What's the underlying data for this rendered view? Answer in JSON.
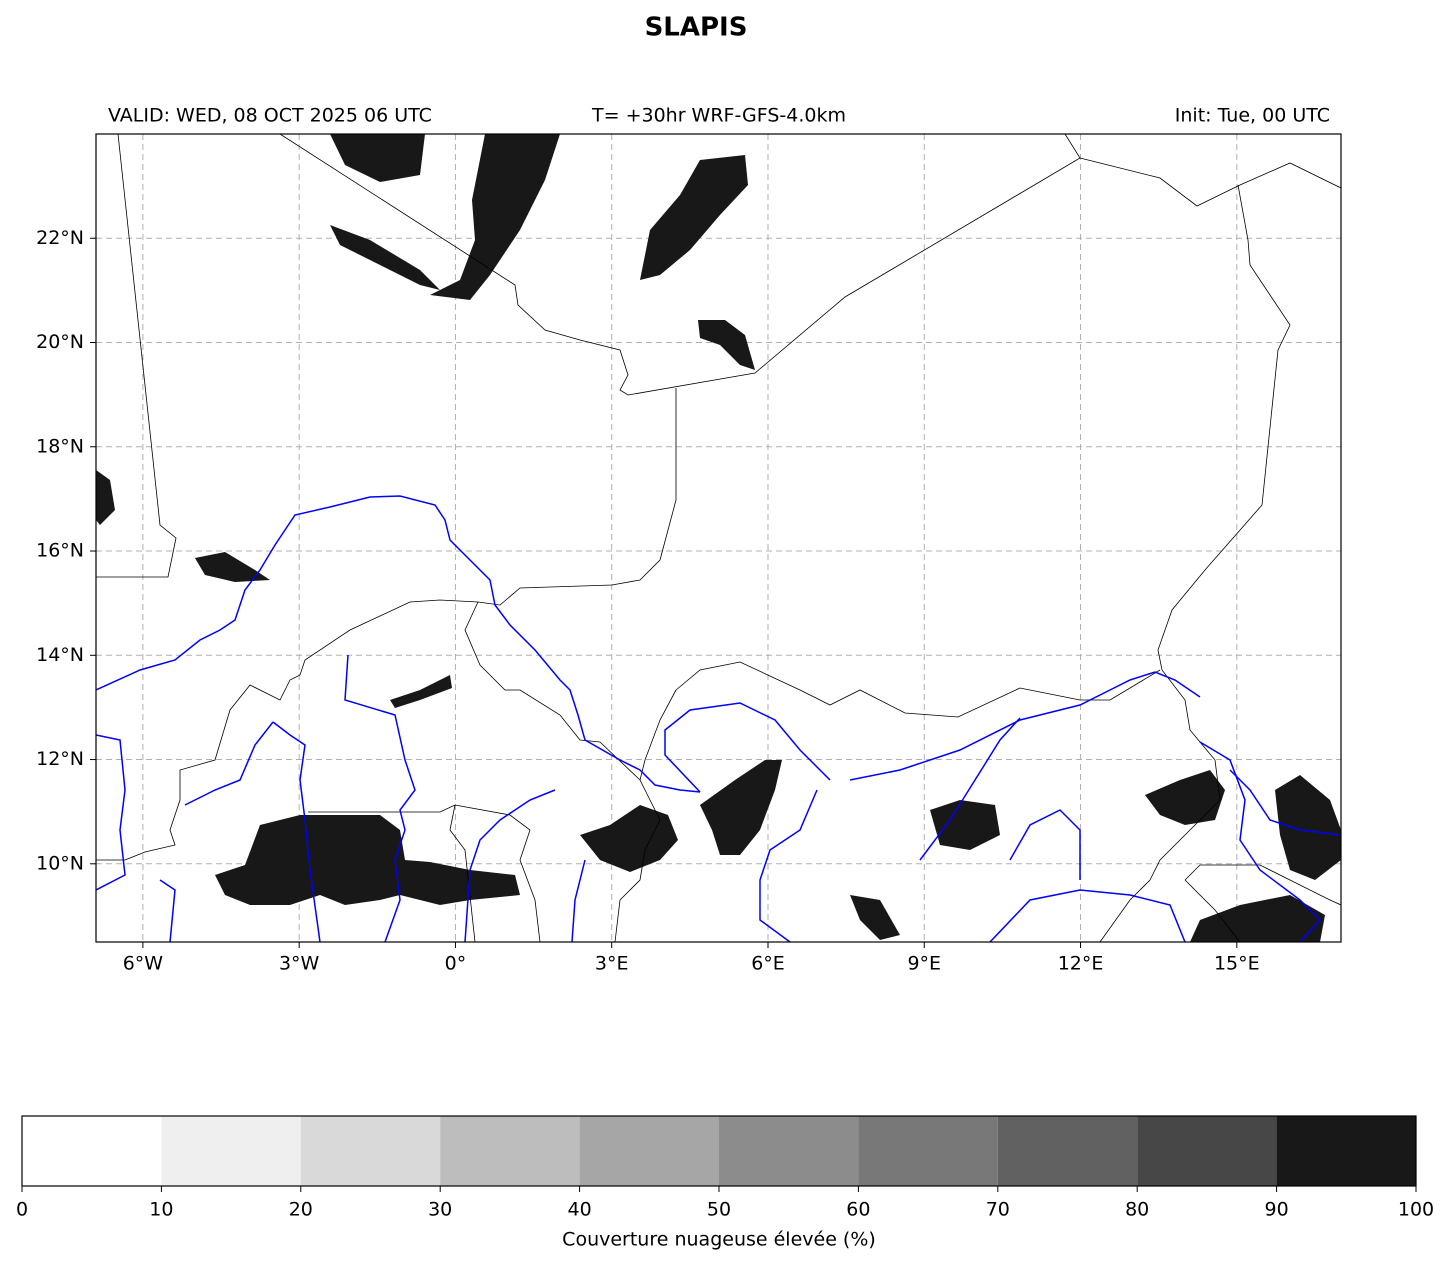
{
  "title": "SLAPIS",
  "header": {
    "valid": "VALID: WED, 08 OCT 2025 06 UTC",
    "forecast": "T= +30hr WRF-GFS-4.0km",
    "init": "Init: Tue, 00 UTC"
  },
  "map": {
    "lonlim": [
      -6.9,
      17
    ],
    "latlim": [
      8.5,
      24
    ],
    "grid": true,
    "xticks": [
      {
        "value": -6,
        "label": "6°W"
      },
      {
        "value": -3,
        "label": "3°W"
      },
      {
        "value": 0,
        "label": "0°"
      },
      {
        "value": 3,
        "label": "3°E"
      },
      {
        "value": 6,
        "label": "6°E"
      },
      {
        "value": 9,
        "label": "9°E"
      },
      {
        "value": 12,
        "label": "12°E"
      },
      {
        "value": 15,
        "label": "15°E"
      }
    ],
    "yticks": [
      {
        "value": 10,
        "label": "10°N"
      },
      {
        "value": 12,
        "label": "12°N"
      },
      {
        "value": 14,
        "label": "14°N"
      },
      {
        "value": 16,
        "label": "16°N"
      },
      {
        "value": 18,
        "label": "18°N"
      },
      {
        "value": 20,
        "label": "20°N"
      },
      {
        "value": 22,
        "label": "22°N"
      }
    ]
  },
  "colorbar": {
    "label": "Couverture nuageuse élevée (%)",
    "ticks": [
      0,
      10,
      20,
      30,
      40,
      50,
      60,
      70,
      80,
      90,
      100
    ],
    "colors": [
      "#ffffff",
      "#efefef",
      "#d9d9d9",
      "#bdbdbd",
      "#a6a6a6",
      "#8c8c8c",
      "#787878",
      "#616161",
      "#474747",
      "#181818"
    ]
  }
}
